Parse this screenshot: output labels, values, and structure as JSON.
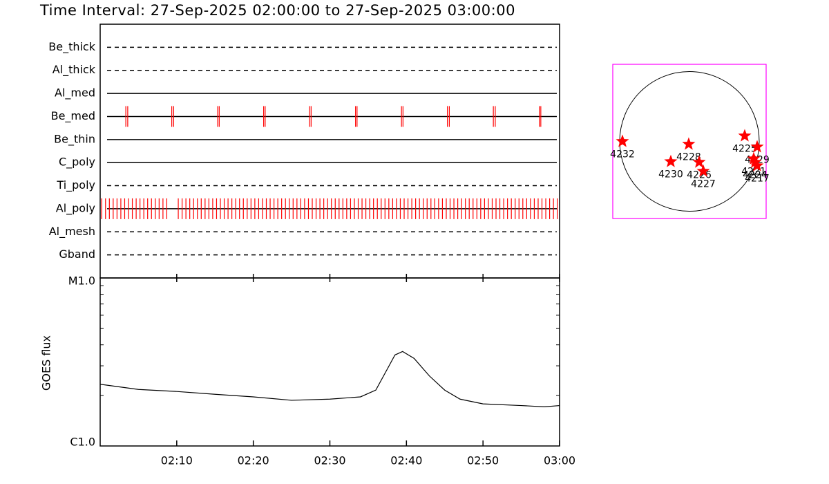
{
  "chart_data": [
    {
      "type": "timeline",
      "title": "Time Interval: 27-Sep-2025 02:00:00 to 27-Sep-2025 03:00:00",
      "rows": [
        {
          "name": "Be_thick",
          "style": "dashed",
          "events": []
        },
        {
          "name": "Al_thick",
          "style": "dashed",
          "events": []
        },
        {
          "name": "Al_med",
          "style": "solid",
          "events": []
        },
        {
          "name": "Be_med",
          "style": "solid",
          "events": [
            3.35,
            3.6,
            9.35,
            9.6,
            15.35,
            15.55,
            21.35,
            21.55,
            27.35,
            27.55,
            33.35,
            33.55,
            39.35,
            39.55,
            45.35,
            45.6,
            51.35,
            51.6,
            57.35,
            57.55
          ]
        },
        {
          "name": "Be_thin",
          "style": "solid",
          "events": []
        },
        {
          "name": "C_poly",
          "style": "solid",
          "events": []
        },
        {
          "name": "Ti_poly",
          "style": "dashed",
          "events": []
        },
        {
          "name": "Al_poly",
          "style": "solid",
          "events": [
            0.2,
            0.7,
            1.2,
            1.7,
            2.2,
            2.7,
            3.2,
            3.7,
            4.2,
            4.7,
            5.2,
            5.7,
            6.2,
            6.7,
            7.2,
            7.7,
            8.2,
            8.7,
            10.2,
            10.7,
            11.2,
            11.7,
            12.2,
            12.7,
            13.2,
            13.7,
            14.2,
            14.7,
            15.2,
            15.7,
            16.2,
            16.7,
            17.2,
            17.7,
            18.2,
            18.7,
            19.2,
            19.7,
            20.2,
            20.7,
            21.2,
            21.7,
            22.2,
            22.7,
            23.2,
            23.7,
            24.2,
            24.7,
            25.2,
            25.7,
            26.2,
            26.7,
            27.2,
            27.7,
            28.2,
            28.7,
            29.2,
            29.7,
            30.2,
            30.7,
            31.2,
            31.7,
            32.2,
            32.7,
            33.2,
            33.7,
            34.2,
            34.7,
            35.2,
            35.7,
            36.2,
            36.7,
            37.2,
            37.7,
            38.2,
            38.7,
            39.2,
            39.7,
            40.2,
            40.7,
            41.2,
            41.7,
            42.2,
            42.7,
            43.2,
            43.7,
            44.2,
            44.7,
            45.2,
            45.7,
            46.2,
            46.7,
            47.2,
            47.7,
            48.2,
            48.7,
            49.2,
            49.7,
            50.2,
            50.7,
            51.2,
            51.7,
            52.2,
            52.7,
            53.2,
            53.7,
            54.2,
            54.7,
            55.2,
            55.7,
            56.2,
            56.7,
            57.2,
            57.7,
            58.2,
            58.7,
            59.2,
            59.7
          ]
        },
        {
          "name": "Al_mesh",
          "style": "dashed",
          "events": []
        },
        {
          "name": "Gband",
          "style": "dashed",
          "events": []
        }
      ],
      "event_color": "#ff0000"
    },
    {
      "type": "line",
      "ylabel": "GOES flux",
      "log_scale": true,
      "x": [
        0,
        5,
        10,
        15,
        20,
        25,
        30,
        34,
        36,
        37.5,
        38.5,
        39.5,
        41,
        43,
        45,
        47,
        50,
        55,
        58,
        60
      ],
      "series": [
        {
          "color": "#000000",
          "values": [
            2.33e-06,
            2.17e-06,
            2.11e-06,
            2.03e-06,
            1.96e-06,
            1.87e-06,
            1.9e-06,
            1.96e-06,
            2.15e-06,
            2.87e-06,
            3.48e-06,
            3.65e-06,
            3.32e-06,
            2.61e-06,
            2.15e-06,
            1.9e-06,
            1.78e-06,
            1.74e-06,
            1.71e-06,
            1.74e-06
          ]
        }
      ],
      "xlim": [
        0,
        60
      ],
      "xticks": [
        {
          "value": 10,
          "label": "02:10"
        },
        {
          "value": 20,
          "label": "02:20"
        },
        {
          "value": 30,
          "label": "02:30"
        },
        {
          "value": 40,
          "label": "02:40"
        },
        {
          "value": 50,
          "label": "02:50"
        },
        {
          "value": 60,
          "label": "03:00"
        }
      ],
      "ylim": [
        1e-06,
        1e-05
      ],
      "yticks": [
        {
          "value": 1e-06,
          "label": "C1.0"
        },
        {
          "value": 1e-05,
          "label": "M1.0"
        }
      ],
      "yminor": [
        2e-06,
        3e-06,
        4e-06,
        5e-06,
        6e-06,
        7e-06,
        8e-06,
        9e-06
      ]
    },
    {
      "type": "scatter",
      "xlim": [
        -1055,
        1055
      ],
      "ylim": [
        -1055,
        1055
      ],
      "disk_radius": 960,
      "frame_color": "#ff00ff",
      "color": "#ff0000",
      "labels": [
        "4232",
        "4228",
        "4230",
        "4226",
        "4227",
        "4225",
        "4229",
        "4221",
        "4224",
        "4217"
      ],
      "x": [
        -922,
        -10,
        -257,
        133,
        190,
        760,
        931,
        884,
        903,
        931
      ],
      "y": [
        0,
        -38,
        -276,
        -285,
        -408,
        76,
        -76,
        -238,
        -285,
        -333
      ]
    }
  ]
}
